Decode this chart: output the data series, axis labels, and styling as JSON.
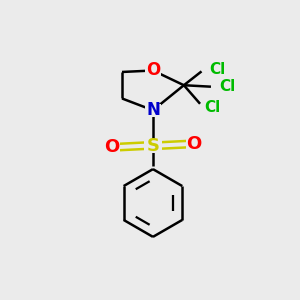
{
  "background_color": "#ebebeb",
  "bond_color": "#000000",
  "bond_width": 1.8,
  "atom_colors": {
    "O": "#ff0000",
    "N": "#0000cc",
    "S": "#cccc00",
    "Cl": "#00bb00",
    "C": "#000000"
  },
  "font_sizes": {
    "O_ring": 12,
    "N": 12,
    "S": 13,
    "Cl": 11,
    "O_sulfonyl": 13
  }
}
